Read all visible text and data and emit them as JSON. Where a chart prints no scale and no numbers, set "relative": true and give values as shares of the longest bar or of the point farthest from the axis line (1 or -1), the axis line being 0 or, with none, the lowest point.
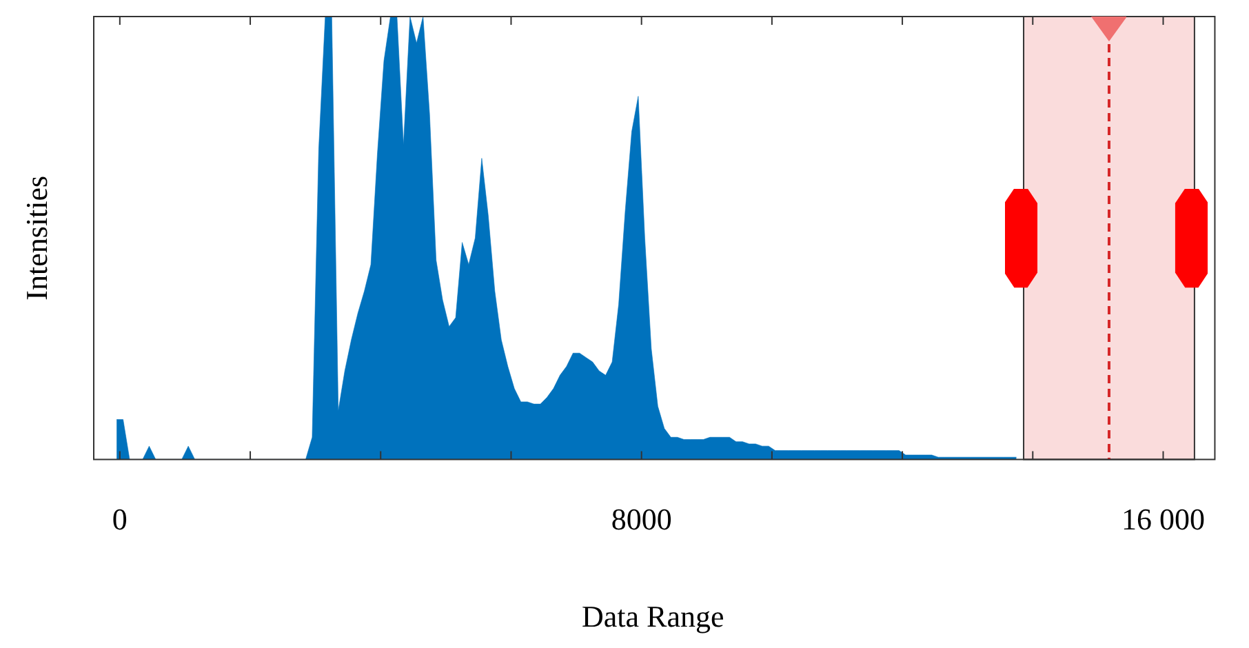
{
  "chart_data": {
    "type": "area",
    "relative": true,
    "xlabel": "Data Range",
    "ylabel": "Intensities",
    "color": "#0072bd",
    "x": [
      -50,
      50,
      150,
      250,
      350,
      450,
      550,
      650,
      750,
      850,
      950,
      1050,
      1150,
      1250,
      1350,
      1450,
      1550,
      1650,
      1750,
      1850,
      1950,
      2050,
      2150,
      2250,
      2350,
      2450,
      2550,
      2650,
      2750,
      2850,
      2950,
      3050,
      3150,
      3250,
      3350,
      3450,
      3550,
      3650,
      3750,
      3850,
      3950,
      4050,
      4150,
      4250,
      4350,
      4450,
      4550,
      4650,
      4750,
      4850,
      4950,
      5050,
      5150,
      5250,
      5350,
      5450,
      5550,
      5650,
      5750,
      5850,
      5950,
      6050,
      6150,
      6250,
      6350,
      6450,
      6550,
      6650,
      6750,
      6850,
      6950,
      7050,
      7150,
      7250,
      7350,
      7450,
      7550,
      7650,
      7750,
      7850,
      7950,
      8050,
      8150,
      8250,
      8350,
      8450,
      8550,
      8650,
      8750,
      8850,
      8950,
      9050,
      9150,
      9250,
      9350,
      9450,
      9550,
      9650,
      9750,
      9850,
      9950,
      10050,
      10150,
      10250,
      10350,
      10450,
      10550,
      10650,
      10750,
      10850,
      10950,
      11050,
      11150,
      11250,
      11350,
      11450,
      11550,
      11650,
      11750,
      11850,
      11950,
      12050,
      12150,
      12250,
      12350,
      12450,
      12550,
      12650,
      12750,
      12850,
      12950,
      13050,
      13150,
      13250,
      13350,
      13450,
      13550,
      13650,
      13750
    ],
    "values": [
      0.09,
      0.09,
      0,
      0,
      0,
      0.03,
      0,
      0,
      0,
      0,
      0,
      0.03,
      0,
      0,
      0,
      0,
      0,
      0,
      0,
      0,
      0,
      0,
      0,
      0,
      0,
      0,
      0,
      0,
      0,
      0,
      0.05,
      0.7,
      1,
      1,
      0.11,
      0.2,
      0.27,
      0.33,
      0.38,
      0.44,
      0.69,
      0.9,
      1,
      1,
      0.71,
      1,
      0.94,
      1,
      0.78,
      0.45,
      0.36,
      0.3,
      0.32,
      0.49,
      0.44,
      0.5,
      0.68,
      0.55,
      0.38,
      0.27,
      0.21,
      0.16,
      0.13,
      0.13,
      0.125,
      0.125,
      0.14,
      0.16,
      0.19,
      0.21,
      0.24,
      0.24,
      0.23,
      0.22,
      0.2,
      0.19,
      0.22,
      0.35,
      0.56,
      0.74,
      0.82,
      0.5,
      0.25,
      0.12,
      0.07,
      0.05,
      0.05,
      0.045,
      0.045,
      0.045,
      0.045,
      0.05,
      0.05,
      0.05,
      0.05,
      0.04,
      0.04,
      0.035,
      0.035,
      0.03,
      0.03,
      0.02,
      0.02,
      0.02,
      0.02,
      0.02,
      0.02,
      0.02,
      0.02,
      0.02,
      0.02,
      0.02,
      0.02,
      0.02,
      0.02,
      0.02,
      0.02,
      0.02,
      0.02,
      0.02,
      0.02,
      0.01,
      0.01,
      0.01,
      0.01,
      0.01,
      0.005,
      0.005,
      0.005,
      0.005,
      0.005,
      0.005,
      0.005,
      0.005,
      0.005,
      0.005,
      0.005,
      0.005,
      0.005
    ],
    "xlim": [
      -400,
      16750
    ],
    "xticks": [
      0,
      {
        "value": 2000,
        "label": null
      },
      {
        "value": 4000,
        "label": null
      },
      {
        "value": 6000,
        "label": null
      },
      8000,
      {
        "value": 10000,
        "label": null
      },
      {
        "value": 12000,
        "label": null
      },
      {
        "value": 14000,
        "label": null
      },
      {
        "value": 16000,
        "label": "16 000"
      }
    ],
    "bands": [
      {
        "axis": "x",
        "from": 13860,
        "to": 16480,
        "color": "#fadcdc"
      }
    ],
    "ref_lines": [
      {
        "axis": "x",
        "value": 15170,
        "color": "#d62728",
        "line_style": "dashed"
      }
    ],
    "grid": false,
    "legend": false
  }
}
